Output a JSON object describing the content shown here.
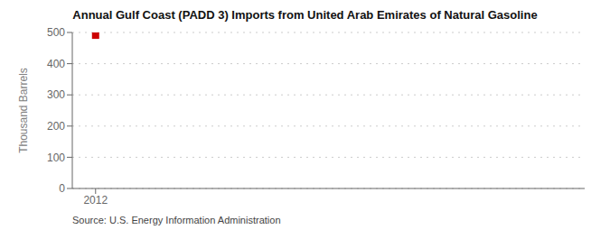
{
  "chart_data": {
    "type": "scatter",
    "title": "Annual Gulf Coast (PADD 3) Imports from United Arab Emirates of Natural Gasoline",
    "ylabel": "Thousand Barrels",
    "source": "Source: U.S. Energy Information Administration",
    "x": [
      2012
    ],
    "values": [
      491
    ],
    "color": "#cc0000",
    "marker": "square",
    "xlim": [
      2011.5,
      2022.5
    ],
    "xticks": [
      2012
    ],
    "ylim": [
      0,
      500
    ],
    "yticks": [
      0,
      100,
      200,
      300,
      400,
      500
    ],
    "grid": "y"
  }
}
